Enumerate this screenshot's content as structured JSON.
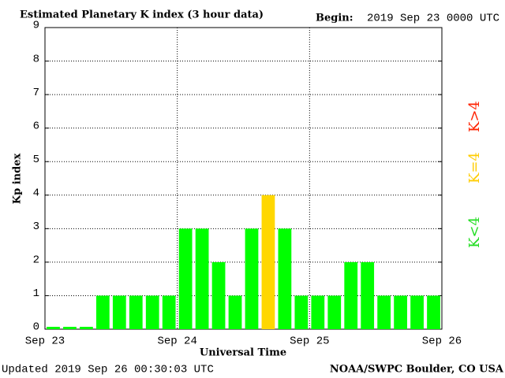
{
  "chart_data": {
    "type": "bar",
    "title": "Estimated Planetary K index (3 hour data)",
    "begin_label": "Begin:",
    "begin": "2019 Sep 23 0000 UTC",
    "ylabel": "Kp index",
    "xlabel": "Universal Time",
    "updated": "Updated 2019 Sep 26 00:30:03 UTC",
    "source": "NOAA/SWPC Boulder, CO USA",
    "categories": [
      null,
      null,
      null,
      null,
      null,
      null,
      null,
      null,
      null,
      null,
      null,
      null,
      null,
      null,
      null,
      null,
      null,
      null,
      null,
      null,
      null,
      null,
      null,
      null
    ],
    "values": [
      0,
      0,
      0,
      1,
      1,
      1,
      1,
      1,
      3,
      3,
      2,
      1,
      3,
      4,
      3,
      1,
      1,
      1,
      2,
      2,
      1,
      1,
      1,
      1
    ],
    "colors": [
      "#00ff00",
      "#00ff00",
      "#00ff00",
      "#00ff00",
      "#00ff00",
      "#00ff00",
      "#00ff00",
      "#00ff00",
      "#00ff00",
      "#00ff00",
      "#00ff00",
      "#00ff00",
      "#00ff00",
      "#ffd700",
      "#00ff00",
      "#00ff00",
      "#00ff00",
      "#00ff00",
      "#00ff00",
      "#00ff00",
      "#00ff00",
      "#00ff00",
      "#00ff00",
      "#00ff00"
    ],
    "legend": [
      {
        "label": "K<4",
        "color": "#22dd22"
      },
      {
        "label": "K=4",
        "color": "#ffcc00"
      },
      {
        "label": "K>4",
        "color": "#ff2200"
      }
    ],
    "xlim": [
      0,
      3
    ],
    "xticks": [
      {
        "value": 0,
        "label": "Sep 23"
      },
      {
        "value": 1,
        "label": "Sep 24"
      },
      {
        "value": 2,
        "label": "Sep 25"
      },
      {
        "value": 3,
        "label": "Sep 26"
      }
    ],
    "ylim": [
      0,
      9
    ],
    "yticks": [
      0,
      1,
      2,
      3,
      4,
      5,
      6,
      7,
      8,
      9
    ],
    "grid": true
  }
}
